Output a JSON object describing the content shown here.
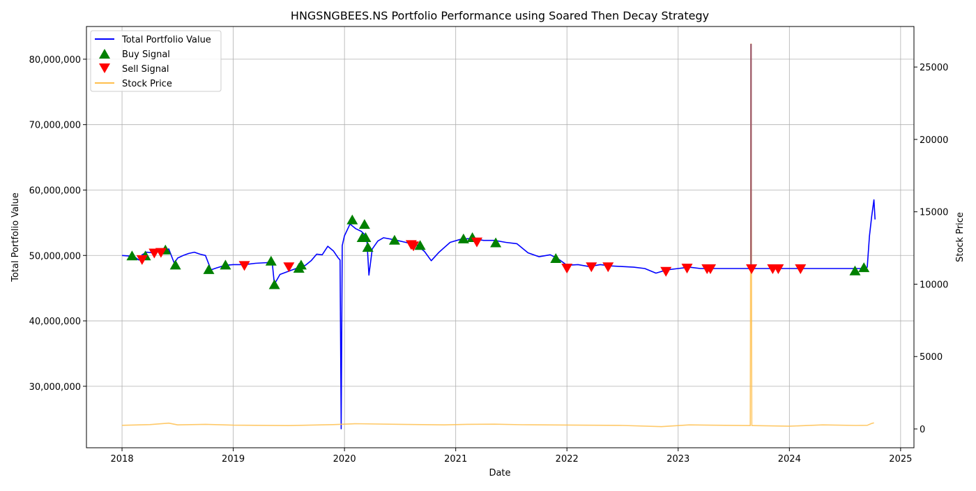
{
  "chart_data": {
    "type": "line",
    "title": "HNGSNGBEES.NS Portfolio Performance using Soared Then Decay Strategy",
    "xlabel": "Date",
    "ylabel": "Total Portfolio Value",
    "y2label": "Stock Price",
    "xlim": [
      2017.68,
      2025.12
    ],
    "ylim": [
      20600000,
      85000000
    ],
    "y2lim": [
      -1300,
      27800
    ],
    "x_ticks": [
      2018,
      2019,
      2020,
      2021,
      2022,
      2023,
      2024,
      2025
    ],
    "x_tick_labels": [
      "2018",
      "2019",
      "2020",
      "2021",
      "2022",
      "2023",
      "2024",
      "2025"
    ],
    "y_ticks": [
      30000000,
      40000000,
      50000000,
      60000000,
      70000000,
      80000000
    ],
    "y_tick_labels": [
      "30,000,000",
      "40,000,000",
      "50,000,000",
      "60,000,000",
      "70,000,000",
      "80,000,000"
    ],
    "y2_ticks": [
      0,
      5000,
      10000,
      15000,
      20000,
      25000
    ],
    "y2_tick_labels": [
      "0",
      "5000",
      "10000",
      "15000",
      "20000",
      "25000"
    ],
    "grid": true,
    "legend_position": "top-left",
    "legend": [
      {
        "label": "Total Portfolio Value",
        "kind": "line",
        "color": "#0000ff"
      },
      {
        "label": "Buy Signal",
        "kind": "triangle-up",
        "color": "#008000"
      },
      {
        "label": "Sell Signal",
        "kind": "triangle-down",
        "color": "#ff0000"
      },
      {
        "label": "Stock Price",
        "kind": "line",
        "color": "#ffbf4d"
      }
    ],
    "colors": {
      "portfolio": "#0000ff",
      "buy": "#008000",
      "sell": "#ff0000",
      "price": "#ffbf4d",
      "overlap": "#9a5566",
      "grid": "#b0b0b0"
    },
    "series": [
      {
        "name": "Total Portfolio Value",
        "axis": "left",
        "color": "#0000ff",
        "x": [
          2018.0,
          2018.08,
          2018.12,
          2018.15,
          2018.18,
          2018.22,
          2018.28,
          2018.33,
          2018.38,
          2018.42,
          2018.47,
          2018.5,
          2018.55,
          2018.6,
          2018.65,
          2018.7,
          2018.75,
          2018.8,
          2018.85,
          2018.93,
          2019.0,
          2019.1,
          2019.2,
          2019.3,
          2019.35,
          2019.37,
          2019.42,
          2019.5,
          2019.58,
          2019.65,
          2019.7,
          2019.75,
          2019.8,
          2019.85,
          2019.9,
          2019.94,
          2019.96,
          2019.97,
          2019.98,
          2020.0,
          2020.05,
          2020.1,
          2020.15,
          2020.2,
          2020.22,
          2020.25,
          2020.3,
          2020.35,
          2020.45,
          2020.55,
          2020.65,
          2020.72,
          2020.78,
          2020.85,
          2020.95,
          2021.05,
          2021.15,
          2021.25,
          2021.35,
          2021.45,
          2021.55,
          2021.65,
          2021.75,
          2021.85,
          2021.92,
          2022.0,
          2022.1,
          2022.2,
          2022.3,
          2022.4,
          2022.5,
          2022.6,
          2022.7,
          2022.8,
          2022.9,
          2023.0,
          2023.1,
          2023.2,
          2023.3,
          2023.4,
          2023.6,
          2023.8,
          2024.0,
          2024.2,
          2024.4,
          2024.6,
          2024.68,
          2024.7,
          2024.72,
          2024.74,
          2024.76,
          2024.77
        ],
        "y": [
          50000000,
          49900000,
          49700000,
          49300000,
          50100000,
          50500000,
          50400000,
          50700000,
          50700000,
          51000000,
          48800000,
          49600000,
          50000000,
          50300000,
          50500000,
          50200000,
          50000000,
          47800000,
          48100000,
          48500000,
          48600000,
          48600000,
          48800000,
          48900000,
          49000000,
          45600000,
          47100000,
          47600000,
          48100000,
          48500000,
          49200000,
          50200000,
          50100000,
          51400000,
          50700000,
          49700000,
          49300000,
          23500000,
          51500000,
          53000000,
          54800000,
          54100000,
          53700000,
          52900000,
          47000000,
          51000000,
          52200000,
          52700000,
          52400000,
          52000000,
          51600000,
          50600000,
          49200000,
          50500000,
          52000000,
          52500000,
          52600000,
          52300000,
          52300000,
          52000000,
          51800000,
          50400000,
          49800000,
          50100000,
          49500000,
          48500000,
          48600000,
          48300000,
          48600000,
          48400000,
          48300000,
          48200000,
          48000000,
          47300000,
          47800000,
          48000000,
          48200000,
          48000000,
          48000000,
          48000000,
          48000000,
          48000000,
          48000000,
          48000000,
          48000000,
          48000000,
          48000000,
          48200000,
          53000000,
          56000000,
          58500000,
          55500000
        ]
      },
      {
        "name": "Stock Price",
        "axis": "right",
        "color": "#ffbf4d",
        "x": [
          2018.0,
          2018.25,
          2018.42,
          2018.5,
          2018.75,
          2019.0,
          2019.5,
          2019.9,
          2020.1,
          2020.5,
          2020.9,
          2021.1,
          2021.35,
          2021.6,
          2022.0,
          2022.5,
          2022.85,
          2023.1,
          2023.64,
          2023.648,
          2023.655,
          2023.662,
          2023.67,
          2024.0,
          2024.3,
          2024.6,
          2024.7,
          2024.74,
          2024.76
        ],
        "y": [
          250,
          300,
          400,
          280,
          320,
          260,
          230,
          300,
          360,
          320,
          280,
          320,
          330,
          290,
          270,
          240,
          160,
          280,
          230,
          230,
          26600,
          230,
          230,
          190,
          280,
          240,
          250,
          380,
          420
        ]
      }
    ],
    "buy_signals": {
      "name": "Buy Signal",
      "color": "#008000",
      "x": [
        2018.09,
        2018.21,
        2018.39,
        2018.48,
        2018.78,
        2018.93,
        2019.34,
        2019.37,
        2019.59,
        2019.61,
        2020.07,
        2020.16,
        2020.19,
        2020.18,
        2020.21,
        2020.45,
        2020.68,
        2021.07,
        2021.15,
        2021.36,
        2021.9,
        2024.59,
        2024.67
      ],
      "y": [
        49900000,
        49900000,
        50800000,
        48500000,
        47800000,
        48500000,
        49100000,
        45500000,
        48000000,
        48500000,
        55400000,
        52700000,
        52700000,
        54700000,
        51200000,
        52300000,
        51500000,
        52500000,
        52700000,
        51900000,
        49500000,
        47600000,
        48100000
      ]
    },
    "sell_signals": {
      "name": "Sell Signal",
      "color": "#ff0000",
      "x": [
        2018.18,
        2018.29,
        2018.35,
        2019.1,
        2019.5,
        2020.6,
        2020.62,
        2021.19,
        2022.0,
        2022.22,
        2022.37,
        2022.89,
        2023.08,
        2023.26,
        2023.29,
        2023.66,
        2023.85,
        2023.9,
        2024.1
      ],
      "y": [
        49400000,
        50400000,
        50500000,
        48500000,
        48300000,
        51700000,
        51500000,
        52100000,
        48100000,
        48300000,
        48300000,
        47600000,
        48100000,
        48000000,
        48000000,
        48000000,
        48000000,
        48000000,
        48000000
      ]
    },
    "overlap_segment": {
      "x": 2023.655,
      "y2_low": 230,
      "y2_high": 26600
    }
  }
}
